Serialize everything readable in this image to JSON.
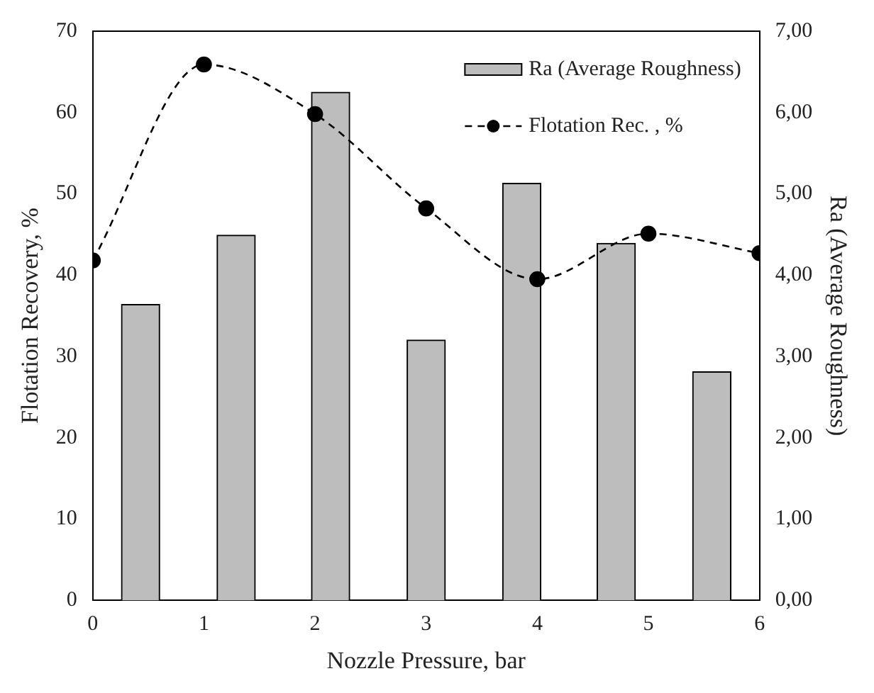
{
  "chart_data": {
    "type": "line",
    "xlabel": "Nozzle Pressure, bar",
    "ylabel": "Flotation Recovery, %",
    "y2label": "Ra (Average Roughness)",
    "xlim": [
      0,
      6
    ],
    "xticks": [
      0,
      1,
      2,
      3,
      4,
      5,
      6
    ],
    "ylim": [
      0,
      70
    ],
    "yticks": [
      0,
      10,
      20,
      30,
      40,
      50,
      60,
      70
    ],
    "y2lim": [
      0,
      7
    ],
    "y2ticks": [
      {
        "value": 0,
        "label": "0,00"
      },
      {
        "value": 1,
        "label": "1,00"
      },
      {
        "value": 2,
        "label": "2,00"
      },
      {
        "value": 3,
        "label": "3,00"
      },
      {
        "value": 4,
        "label": "4,00"
      },
      {
        "value": 5,
        "label": "5,00"
      },
      {
        "value": 6,
        "label": "6,00"
      },
      {
        "value": 7,
        "label": "7,00"
      }
    ],
    "series": [
      {
        "name": "Ra (Average Roughness)",
        "type": "bar",
        "axis": "y2",
        "color": "#bdbdbd",
        "x": [
          0.43,
          1.29,
          2.14,
          3.0,
          3.86,
          4.71,
          5.57
        ],
        "values": [
          3.64,
          4.49,
          6.25,
          3.2,
          5.13,
          4.39,
          2.81
        ]
      },
      {
        "name": "Flotation Rec. , %",
        "color": "#000000",
        "x": [
          0,
          1,
          2,
          3,
          4,
          5,
          6
        ],
        "values": [
          41.8,
          65.9,
          59.8,
          48.2,
          39.5,
          45.1,
          42.7
        ],
        "marker": "circle",
        "line_style": "dashed"
      }
    ],
    "legend": "top right",
    "grid": false
  }
}
